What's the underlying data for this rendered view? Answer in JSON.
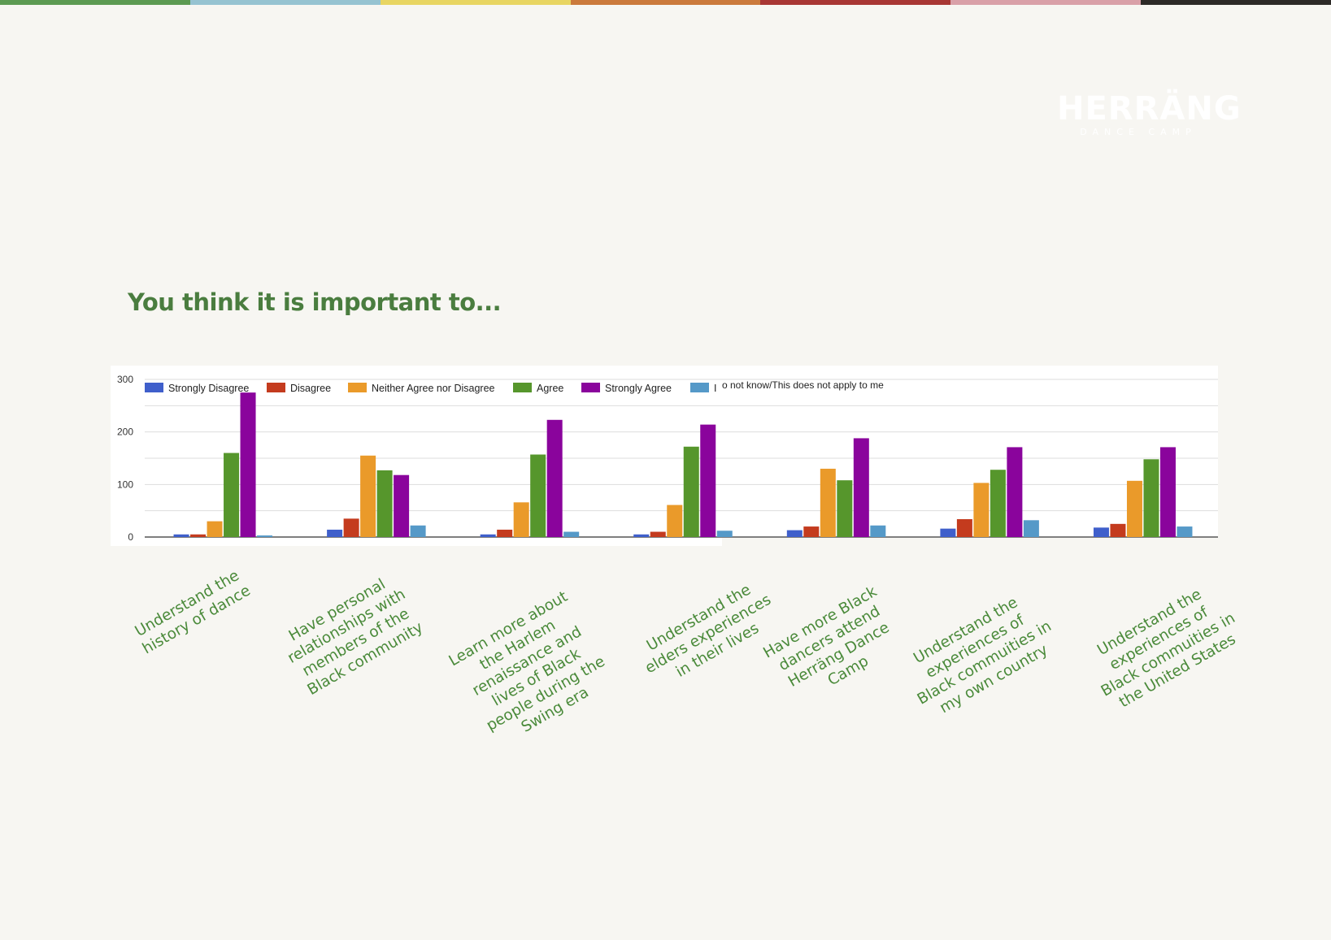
{
  "page": {
    "title": "You think it is important to...",
    "stripe_colors": [
      "#5c9a52",
      "#96c3d1",
      "#e8d562",
      "#cb7a3c",
      "#a83734",
      "#d9a0a8",
      "#2d2a27"
    ],
    "title_color": "#4a7d3f",
    "label_color": "#4a8a3a"
  },
  "logo": {
    "text": "HERRÄNG",
    "subtitle": "DANCE CAMP"
  },
  "chart_data": {
    "type": "bar",
    "ylim": [
      0,
      300
    ],
    "yticks": [
      0,
      100,
      200,
      300
    ],
    "grid": true,
    "legend_position": "top",
    "categories": [
      "Understand the history of dance",
      "Have personal relationships with members of the Black community",
      "Learn more about the Harlem renaissance and lives of Black people during the Swing era",
      "Understand the elders experiences in their lives",
      "Have more Black dancers attend Herräng Dance Camp",
      "Understand the experiences of Black commuities in my own country",
      "Understand the experiences of Black commuities in the United States"
    ],
    "series": [
      {
        "name": "Strongly Disagree",
        "color": "#3f5fcb",
        "values": [
          5,
          14,
          5,
          5,
          13,
          16,
          18
        ]
      },
      {
        "name": "Disagree",
        "color": "#c43b1e",
        "values": [
          5,
          35,
          14,
          10,
          20,
          34,
          25
        ]
      },
      {
        "name": "Neither Agree nor Disagree",
        "color": "#ea9a2a",
        "values": [
          30,
          155,
          66,
          61,
          130,
          103,
          107
        ]
      },
      {
        "name": "Agree",
        "color": "#56962c",
        "values": [
          160,
          127,
          157,
          172,
          108,
          128,
          148
        ]
      },
      {
        "name": "Strongly Agree",
        "color": "#8a049c",
        "values": [
          275,
          118,
          223,
          214,
          188,
          171,
          171
        ]
      },
      {
        "name": "I do not know/This does not apply to me",
        "color": "#5599c8",
        "values": [
          3,
          22,
          10,
          12,
          22,
          32,
          20
        ]
      }
    ],
    "legend_visible_text": [
      "Strongly Disagree",
      "Disagree",
      "Neither Agree nor Disagree",
      "Agree",
      "Strongly Agree",
      "I",
      "o not know/This does not apply to me"
    ]
  }
}
